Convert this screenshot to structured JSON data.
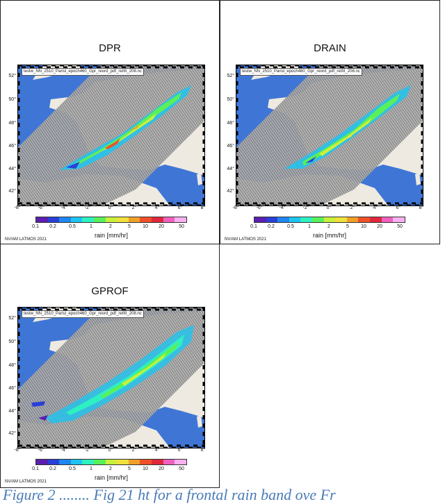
{
  "panels": [
    {
      "title": "DPR",
      "filename": "testw_NN_2510_Parisl_epoch460_Gpr_reord_pdf_retIII_208.nc"
    },
    {
      "title": "DRAIN",
      "filename": "testw_NN_2510_Parisl_epoch460_Gpr_reord_pdf_retIII_208.nc"
    },
    {
      "title": "GPROF",
      "filename": "testw_NN_2510_Parisl_epoch460_Gpr_reord_pdf_retIII_208.nc"
    }
  ],
  "lat_labels": [
    "52°",
    "50°",
    "48°",
    "46°",
    "44°",
    "42°"
  ],
  "lon_labels": [
    "-8°",
    "-6°",
    "-4°",
    "-2°",
    "0°",
    "2°",
    "4°",
    "6°",
    "8°"
  ],
  "colorbar": {
    "ticks": [
      "0.1",
      "0.2",
      "0.5",
      "1",
      "2",
      "5",
      "10",
      "20",
      "50"
    ],
    "label": "rain [mm/hr]",
    "colors": [
      "#5a1fb0",
      "#2a3fd8",
      "#1e86f0",
      "#1ec4f0",
      "#2ef0c0",
      "#5af05a",
      "#c8f03c",
      "#f0e03c",
      "#f0a028",
      "#f05028",
      "#e0283c",
      "#f060c0",
      "#f8b0f0"
    ]
  },
  "credit": "NV/AM LATMOS 2021",
  "caption": "Figure 2 ........ Fig 21 ht for a frontal rain band ove Fr"
}
